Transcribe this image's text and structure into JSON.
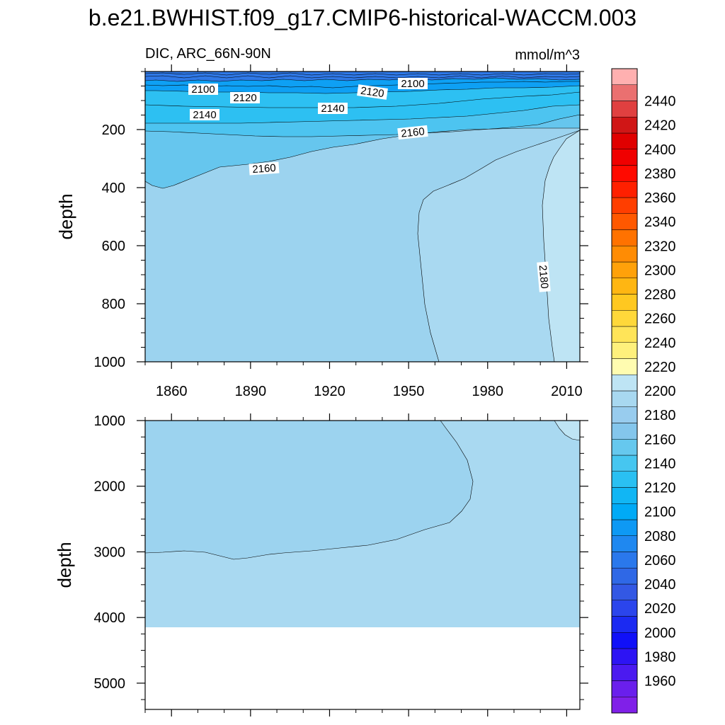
{
  "title": "b.e21.BWHIST.f09_g17.CMIP6-historical-WACCM.003",
  "chart_data": {
    "type": "heatmap",
    "title": "b.e21.BWHIST.f09_g17.CMIP6-historical-WACCM.003",
    "left_label": "DIC, ARC_66N-90N",
    "right_label": "mmol/m^3",
    "ylabel": "depth",
    "x_ticks": [
      "1860",
      "1890",
      "1920",
      "1950",
      "1980",
      "2010"
    ],
    "x_tick_values": [
      1860,
      1890,
      1920,
      1950,
      1980,
      2010
    ],
    "xlim": [
      1850,
      2015
    ],
    "panels": [
      {
        "name": "upper",
        "ylim": [
          0,
          1000
        ],
        "y_ticks": [
          "200",
          "400",
          "600",
          "800",
          "1000"
        ],
        "y_tick_values": [
          200,
          400,
          600,
          800,
          1000
        ],
        "contour_labels": [
          {
            "text": "2100",
            "year": 1871,
            "depth": 55
          },
          {
            "text": "2120",
            "year": 1889,
            "depth": 80
          },
          {
            "text": "2100",
            "year": 1958,
            "depth": 40
          },
          {
            "text": "2120",
            "year": 1936,
            "depth": 70
          },
          {
            "text": "2140",
            "year": 1867,
            "depth": 190
          },
          {
            "text": "2140",
            "year": 1929,
            "depth": 125
          },
          {
            "text": "2160",
            "year": 1955,
            "depth": 305
          },
          {
            "text": "2160",
            "year": 1895,
            "depth": 585
          },
          {
            "text": "2180",
            "year": 2003,
            "depth": 840
          }
        ]
      },
      {
        "name": "lower",
        "ylim": [
          1000,
          5400
        ],
        "y_ticks": [
          "1000",
          "2000",
          "3000",
          "4000",
          "5000"
        ],
        "y_tick_values": [
          1000,
          2000,
          3000,
          4000,
          5000
        ],
        "contour_labels": []
      }
    ],
    "colorbar": {
      "levels": [
        1960,
        1980,
        2000,
        2020,
        2040,
        2060,
        2080,
        2100,
        2120,
        2140,
        2160,
        2180,
        2200,
        2220,
        2240,
        2260,
        2280,
        2300,
        2320,
        2340,
        2360,
        2380,
        2400,
        2420,
        2440
      ],
      "colors": [
        "#8020E8",
        "#6A1FEC",
        "#4B1AF0",
        "#2D14F4",
        "#1010F8",
        "#1B2AF2",
        "#2B45EC",
        "#3358E4",
        "#2F68E6",
        "#2A78EC",
        "#1F88F0",
        "#0E99F4",
        "#00AAF6",
        "#11B6F4",
        "#2AC0F2",
        "#46C6F0",
        "#66C8EE",
        "#84C6EC",
        "#98CCEE",
        "#A8D8F0",
        "#BEE4F4",
        "#FFFCB0",
        "#FFF07C",
        "#FFE458",
        "#FFD83A",
        "#FFC820",
        "#FFB612",
        "#FFA10A",
        "#FF8C04",
        "#FF7200",
        "#FF5800",
        "#FF3E00",
        "#FF2000",
        "#FF0A00",
        "#F00000",
        "#E00000",
        "#D01616",
        "#E04040",
        "#EA7070",
        "#FFB0B0"
      ],
      "tick_labels": [
        "1960",
        "1980",
        "2000",
        "2020",
        "2040",
        "2060",
        "2080",
        "2100",
        "2120",
        "2140",
        "2160",
        "2180",
        "2200",
        "2220",
        "2240",
        "2260",
        "2280",
        "2300",
        "2320",
        "2340",
        "2360",
        "2380",
        "2400",
        "2420",
        "2440"
      ]
    }
  }
}
